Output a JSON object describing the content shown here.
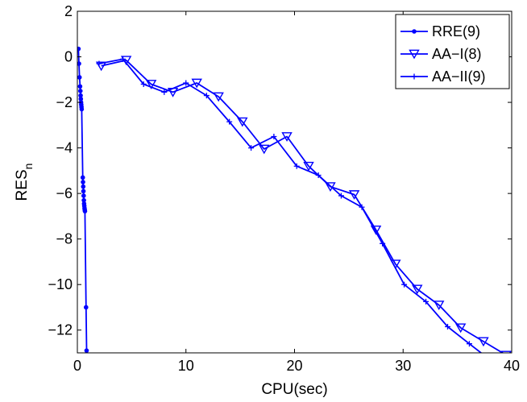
{
  "chart_data": {
    "type": "line",
    "title": "",
    "xlabel": "CPU(sec)",
    "ylabel_main": "RES",
    "ylabel_sub": "n",
    "xlim": [
      0,
      40
    ],
    "ylim": [
      -13,
      2
    ],
    "xticks": [
      0,
      10,
      20,
      30,
      40
    ],
    "yticks": [
      2,
      0,
      -2,
      -4,
      -6,
      -8,
      -10,
      -12
    ],
    "grid": false,
    "legend_position": "top-right",
    "line_color": "#0000ff",
    "series": [
      {
        "name": "RRE(9)",
        "marker": "dot",
        "x": [
          0.1,
          0.15,
          0.2,
          0.25,
          0.28,
          0.3,
          0.32,
          0.34,
          0.36,
          0.38,
          0.4,
          0.5,
          0.52,
          0.54,
          0.56,
          0.58,
          0.6,
          0.62,
          0.64,
          0.66,
          0.68,
          0.7,
          0.8,
          0.85
        ],
        "y": [
          0.35,
          -0.3,
          -0.9,
          -1.3,
          -1.5,
          -1.7,
          -1.85,
          -2.0,
          -2.1,
          -2.2,
          -2.3,
          -5.3,
          -5.5,
          -5.7,
          -5.9,
          -6.1,
          -6.3,
          -6.45,
          -6.55,
          -6.65,
          -6.72,
          -6.78,
          -11.0,
          -12.9
        ]
      },
      {
        "name": "AA−I(8)",
        "marker": "triangle-down",
        "x": [
          2.2,
          4.5,
          6.8,
          8.8,
          11.0,
          13.0,
          15.2,
          17.2,
          19.3,
          21.3,
          23.3,
          25.5,
          27.5,
          29.3,
          31.3,
          33.3,
          35.3,
          37.4,
          39.5
        ],
        "y": [
          -0.4,
          -0.15,
          -1.2,
          -1.55,
          -1.15,
          -1.75,
          -2.85,
          -4.05,
          -3.5,
          -4.8,
          -5.7,
          -6.05,
          -7.6,
          -9.1,
          -10.2,
          -10.9,
          -11.9,
          -12.5,
          -13.1
        ]
      },
      {
        "name": "AA−II(9)",
        "marker": "plus",
        "x": [
          2.0,
          4.2,
          6.1,
          8.0,
          10.0,
          11.9,
          14.0,
          16.0,
          18.1,
          20.2,
          22.2,
          24.3,
          26.2,
          28.1,
          30.1,
          32.1,
          34.1,
          36.1,
          38.0,
          40.0
        ],
        "y": [
          -0.3,
          -0.1,
          -1.2,
          -1.55,
          -1.15,
          -1.7,
          -2.85,
          -4.0,
          -3.5,
          -4.8,
          -5.2,
          -6.1,
          -6.6,
          -8.2,
          -10.0,
          -10.75,
          -11.85,
          -12.6,
          -13.3,
          -14.0
        ]
      }
    ]
  }
}
